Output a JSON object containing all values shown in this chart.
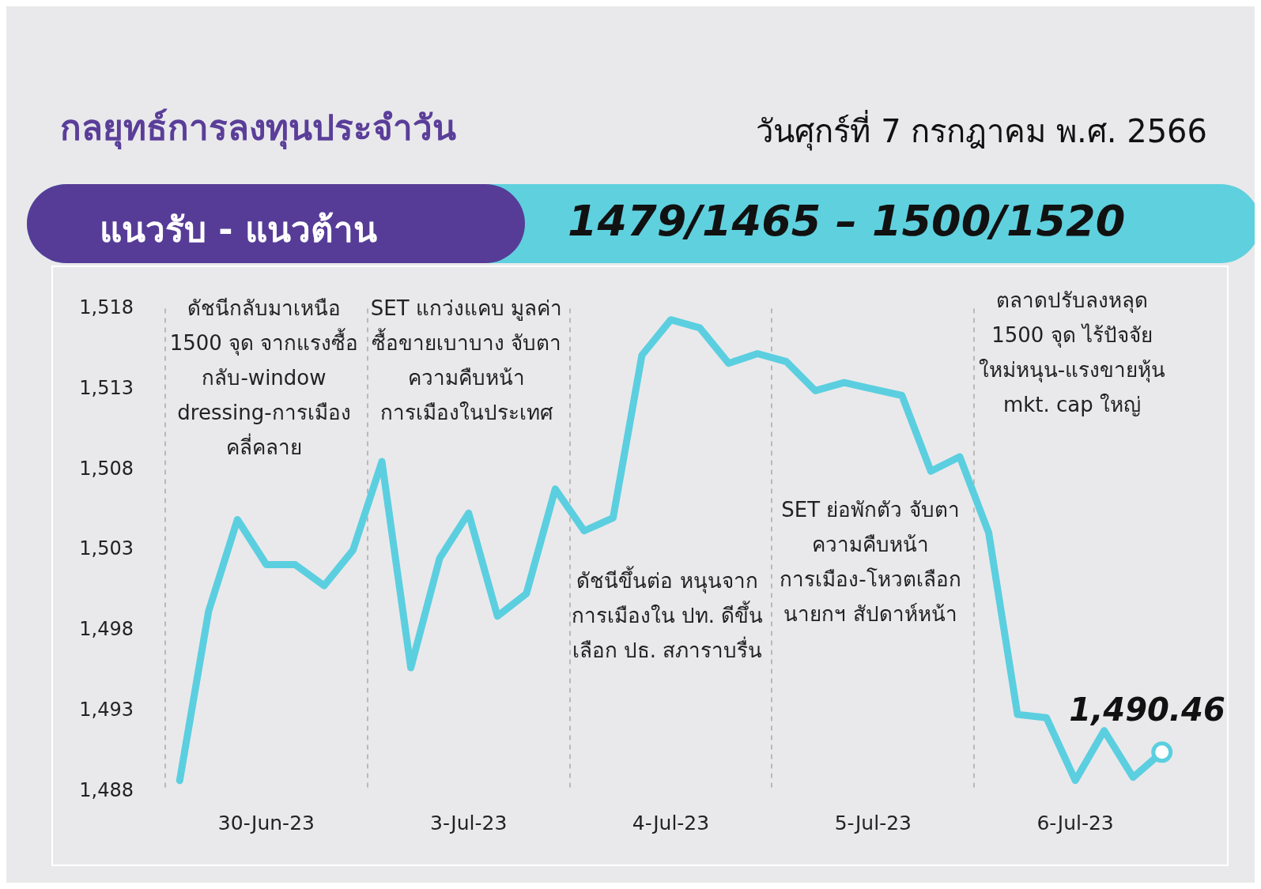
{
  "chart_data": {
    "type": "line",
    "title": "กลยุทธ์การลงทุนประจำวัน",
    "subtitle": "วันศุกร์ที่ 7 กรกฎาคม พ.ศ. 2566",
    "annotations": [
      "แนวรับ - แนวต้าน",
      "1479/1465 – 1500/1520",
      "ดัชนีกลับมาเหนือ 1500 จุด จากแรงซื้อกลับ-window dressing-การเมืองคลี่คลาย",
      "SET แกว่งแคบ มูลค่าซื้อขายเบาบาง จับตาความคืบหน้าการเมืองในประเทศ",
      "ดัชนีขึ้นต่อ หนุนจากการเมืองใน ปท. ดีขึ้น เลือก ปธ. สภาราบรื่น",
      "SET ย่อพักตัว จับตาความคืบหน้าการเมือง-โหวตเลือกนายกฯ สัปดาห์หน้า",
      "ตลาดปรับลงหลุด 1500 จุด ไร้ปัจจัยใหม่หนุน-แรงขายหุ้น mkt. cap ใหญ่"
    ],
    "categories": [
      null,
      null,
      null,
      "30-Jun-23",
      null,
      null,
      null,
      null,
      null,
      null,
      "3-Jul-23",
      null,
      null,
      null,
      null,
      null,
      null,
      "4-Jul-23",
      null,
      null,
      null,
      null,
      null,
      null,
      "5-Jul-23",
      null,
      null,
      null,
      null,
      null,
      null,
      "6-Jul-23",
      null,
      null,
      null
    ],
    "series": [
      {
        "color": "#5bcfdf",
        "values": [
          1488.7,
          1499.2,
          1504.9,
          1502.1,
          1502.1,
          1500.8,
          1503.0,
          1508.5,
          1495.7,
          1502.5,
          1505.3,
          1498.9,
          1500.3,
          1506.8,
          1504.2,
          1505.0,
          1515.1,
          1517.3,
          1516.8,
          1514.6,
          1515.2,
          1514.7,
          1512.9,
          1513.4,
          1513.0,
          1512.6,
          1507.9,
          1508.8,
          1504.1,
          1492.8,
          1492.6,
          1488.7,
          1491.8,
          1488.9,
          1490.46
        ],
        "value_labels": [
          null,
          null,
          null,
          null,
          null,
          null,
          null,
          null,
          null,
          null,
          null,
          null,
          null,
          null,
          null,
          null,
          null,
          null,
          null,
          null,
          null,
          null,
          null,
          null,
          null,
          null,
          null,
          null,
          null,
          null,
          null,
          null,
          null,
          null,
          "1,490.46"
        ]
      }
    ],
    "ylim": [
      1488,
      1518
    ],
    "yticks": [
      {
        "value": 1488,
        "label": "1,488"
      },
      {
        "value": 1493,
        "label": "1,493"
      },
      {
        "value": 1498,
        "label": "1,498"
      },
      {
        "value": 1503,
        "label": "1,503"
      },
      {
        "value": 1508,
        "label": "1,508"
      },
      {
        "value": 1513,
        "label": "1,513"
      },
      {
        "value": 1518,
        "label": "1,518"
      }
    ],
    "grid": "x",
    "legend": false,
    "marker": "none",
    "line_style": "solid"
  }
}
